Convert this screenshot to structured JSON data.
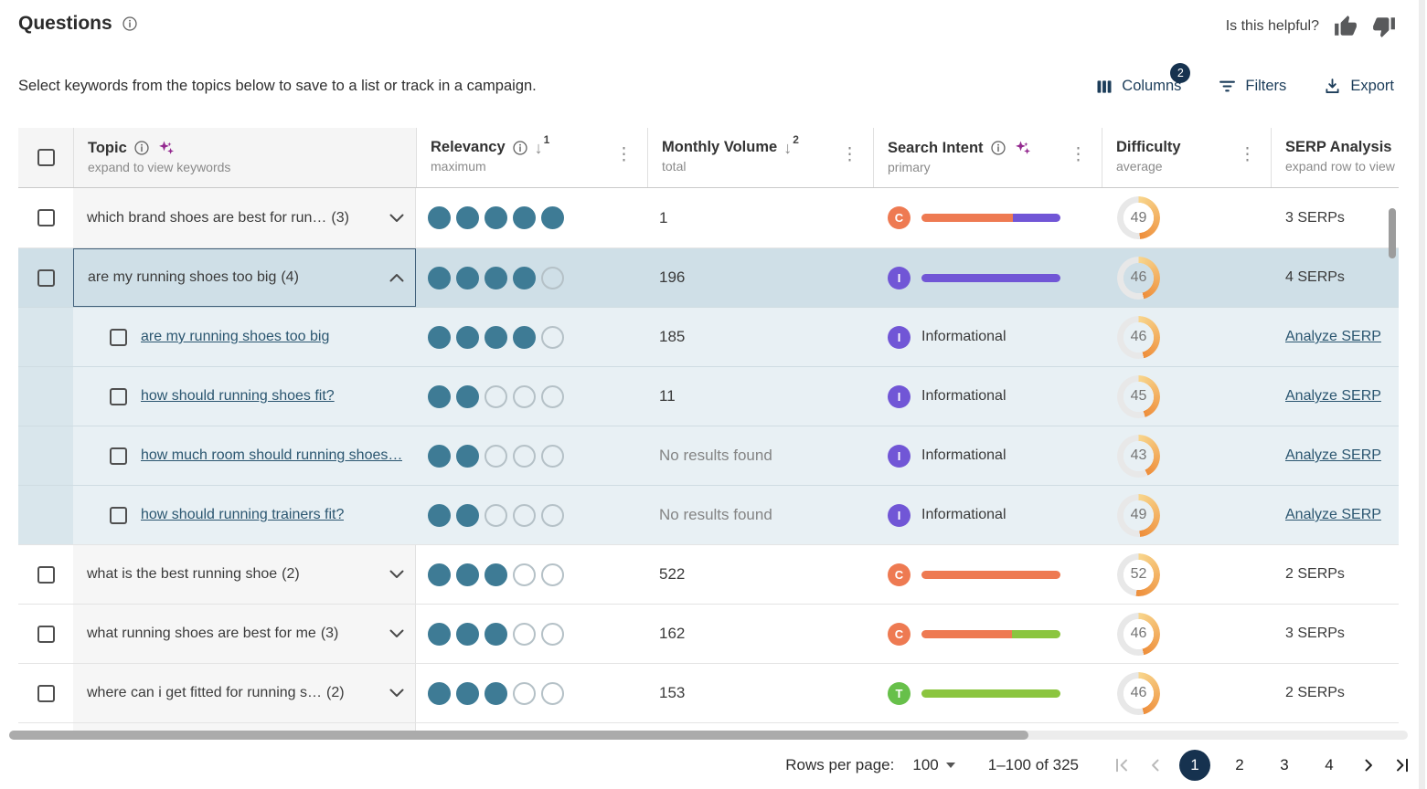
{
  "page": {
    "title": "Questions",
    "helpful_prompt": "Is this helpful?",
    "subtitle": "Select keywords from the topics below to save to a list or track in a campaign."
  },
  "toolbar": {
    "columns_label": "Columns",
    "columns_badge": "2",
    "filters_label": "Filters",
    "export_label": "Export"
  },
  "icons": {
    "info": "circle-i",
    "sparkles": "ai-sparkles",
    "kebab": "⋮",
    "sort_arrow": "↓",
    "caret": "▾",
    "thumb_up": "thumb-up",
    "thumb_down": "thumb-down",
    "columns": "column-bars",
    "filters": "filter-lines",
    "export": "download-tray"
  },
  "colors": {
    "accent_navy": "#1c3d5a",
    "page_active": "#16324f",
    "teal_dot": "#3e7b95",
    "orange": "#ee7a52",
    "purple": "#7156d6",
    "green": "#8bc53f",
    "green_badge": "#67c04a",
    "link": "#2b5670",
    "diff_start": "#f8d68d",
    "diff_end": "#ee8e3b",
    "diff_rest": "#e8e8e8",
    "expanded_row_bg": "#cfdfe7",
    "keyword_row_bg": "#e8f0f4"
  },
  "table": {
    "headers": {
      "topic": {
        "label": "Topic",
        "sub": "expand to view keywords"
      },
      "relevancy": {
        "label": "Relevancy",
        "sub": "maximum",
        "sort_rank": "1"
      },
      "volume": {
        "label": "Monthly Volume",
        "sub": "total",
        "sort_rank": "2"
      },
      "intent": {
        "label": "Search Intent",
        "sub": "primary"
      },
      "difficulty": {
        "label": "Difficulty",
        "sub": "average"
      },
      "serp": {
        "label": "SERP Analysis",
        "sub": "expand row to view"
      }
    },
    "rows": [
      {
        "type": "topic",
        "label": "which brand shoes are best for run…",
        "count": "(3)",
        "expanded": false,
        "relevancy": 5,
        "volume": "1",
        "intent": {
          "code": "C",
          "badge": "orange",
          "segments": [
            {
              "color": "orange",
              "pct": 66
            },
            {
              "color": "purple",
              "pct": 34
            }
          ]
        },
        "difficulty": 49,
        "serp": "3 SERPs"
      },
      {
        "type": "topic",
        "label": "are my running shoes too big",
        "count": "(4)",
        "expanded": true,
        "relevancy": 4,
        "volume": "196",
        "intent": {
          "code": "I",
          "badge": "purple",
          "segments": [
            {
              "color": "purple",
              "pct": 100
            }
          ]
        },
        "difficulty": 46,
        "serp": "4 SERPs"
      },
      {
        "type": "keyword",
        "label": "are my running shoes too big",
        "relevancy": 4,
        "volume": "185",
        "intent": {
          "code": "I",
          "badge": "purple",
          "label": "Informational"
        },
        "difficulty": 46,
        "serp": "Analyze SERP",
        "serp_link": true
      },
      {
        "type": "keyword",
        "label": "how should running shoes fit?",
        "relevancy": 2,
        "volume": "11",
        "intent": {
          "code": "I",
          "badge": "purple",
          "label": "Informational"
        },
        "difficulty": 45,
        "serp": "Analyze SERP",
        "serp_link": true
      },
      {
        "type": "keyword",
        "label": "how much room should running shoes…",
        "relevancy": 2,
        "volume": "No results found",
        "volume_muted": true,
        "intent": {
          "code": "I",
          "badge": "purple",
          "label": "Informational"
        },
        "difficulty": 43,
        "serp": "Analyze SERP",
        "serp_link": true
      },
      {
        "type": "keyword",
        "label": "how should running trainers fit?",
        "relevancy": 2,
        "volume": "No results found",
        "volume_muted": true,
        "intent": {
          "code": "I",
          "badge": "purple",
          "label": "Informational"
        },
        "difficulty": 49,
        "serp": "Analyze SERP",
        "serp_link": true
      },
      {
        "type": "topic",
        "label": "what is the best running shoe",
        "count": "(2)",
        "expanded": false,
        "relevancy": 3,
        "volume": "522",
        "intent": {
          "code": "C",
          "badge": "orange",
          "segments": [
            {
              "color": "orange",
              "pct": 100
            }
          ]
        },
        "difficulty": 52,
        "serp": "2 SERPs"
      },
      {
        "type": "topic",
        "label": "what running shoes are best for me",
        "count": "(3)",
        "expanded": false,
        "relevancy": 3,
        "volume": "162",
        "intent": {
          "code": "C",
          "badge": "orange",
          "segments": [
            {
              "color": "orange",
              "pct": 65
            },
            {
              "color": "green",
              "pct": 35
            }
          ]
        },
        "difficulty": 46,
        "serp": "3 SERPs"
      },
      {
        "type": "topic",
        "label": "where can i get fitted for running s…",
        "count": "(2)",
        "expanded": false,
        "relevancy": 3,
        "volume": "153",
        "intent": {
          "code": "T",
          "badge": "green_badge",
          "segments": [
            {
              "color": "green",
              "pct": 100
            }
          ]
        },
        "difficulty": 46,
        "serp": "2 SERPs"
      }
    ]
  },
  "pagination": {
    "rows_per_page_label": "Rows per page:",
    "rows_per_page_value": "100",
    "range_label": "1–100 of 325",
    "pages": [
      "1",
      "2",
      "3",
      "4"
    ],
    "active_page": "1"
  }
}
